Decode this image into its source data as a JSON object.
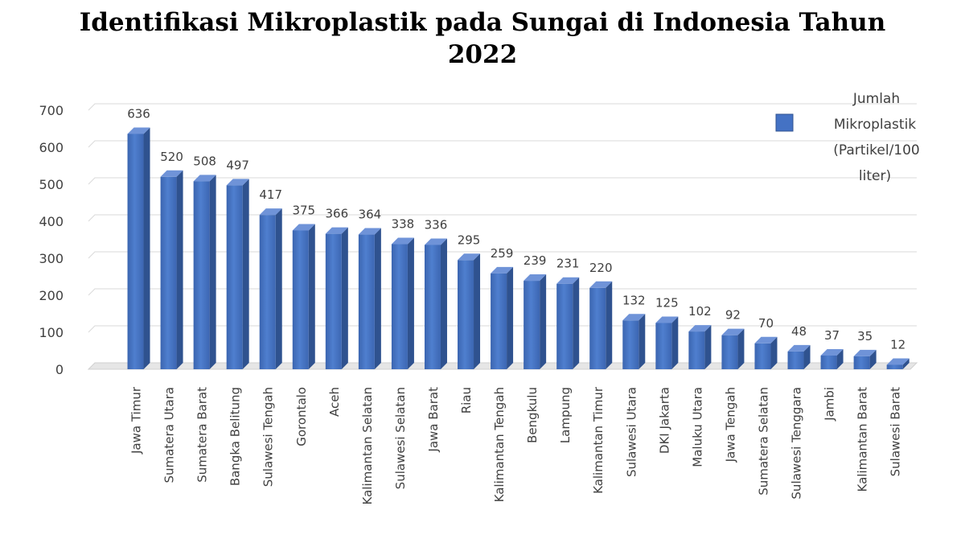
{
  "chart_data": {
    "type": "bar",
    "title": "Identifikasi  Mikroplastik  pada Sungai di Indonesia Tahun 2022",
    "title_lines": [
      "Identifikasi  Mikroplastik  pada Sungai di Indonesia Tahun",
      "2022"
    ],
    "categories": [
      "Jawa Timur",
      "Sumatera Utara",
      "Sumatera Barat",
      "Bangka Belitung",
      "Sulawesi Tengah",
      "Gorontalo",
      "Aceh",
      "Kalimantan Selatan",
      "Sulawesi Selatan",
      "Jawa Barat",
      "Riau",
      "Kalimantan Tengah",
      "Bengkulu",
      "Lampung",
      "Kalimantan Timur",
      "Sulawesi Utara",
      "DKI Jakarta",
      "Maluku Utara",
      "Jawa Tengah",
      "Sumatera Selatan",
      "Sulawesi Tenggara",
      "Jambi",
      "Kalimantan Barat",
      "Sulawesi Barat"
    ],
    "series": [
      {
        "name": "Jumlah Mikroplastik (Partikel/100 liter)",
        "name_lines": [
          "Jumlah",
          "Mikroplastik",
          "(Partikel/100",
          "liter)"
        ],
        "values": [
          636,
          520,
          508,
          497,
          417,
          375,
          366,
          364,
          338,
          336,
          295,
          259,
          239,
          231,
          220,
          132,
          125,
          102,
          92,
          70,
          48,
          37,
          35,
          12
        ],
        "color": "#4472C4"
      }
    ],
    "yticks": [
      "0",
      "100",
      "200",
      "300",
      "400",
      "500",
      "600",
      "700"
    ],
    "ylim": [
      0,
      700
    ],
    "xlabel": "",
    "ylabel": "",
    "grid": true,
    "data_labels": true,
    "legend_position": "top-right"
  }
}
